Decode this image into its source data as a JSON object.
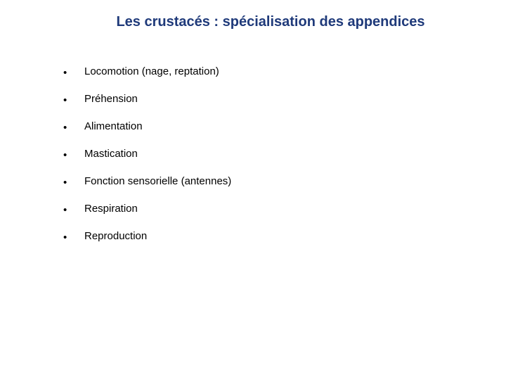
{
  "title": {
    "text": "Les crustacés : spécialisation des appendices",
    "color": "#1f3a7a",
    "fontsize": 20
  },
  "bullets": {
    "items": [
      "Locomotion (nage, reptation)",
      "Préhension",
      "Alimentation",
      "Mastication",
      "Fonction sensorielle (antennes)",
      "Respiration",
      "Reproduction"
    ],
    "marker": "•",
    "fontsize": 15,
    "color": "#000000",
    "marker_color": "#000000"
  },
  "background_color": "#ffffff"
}
